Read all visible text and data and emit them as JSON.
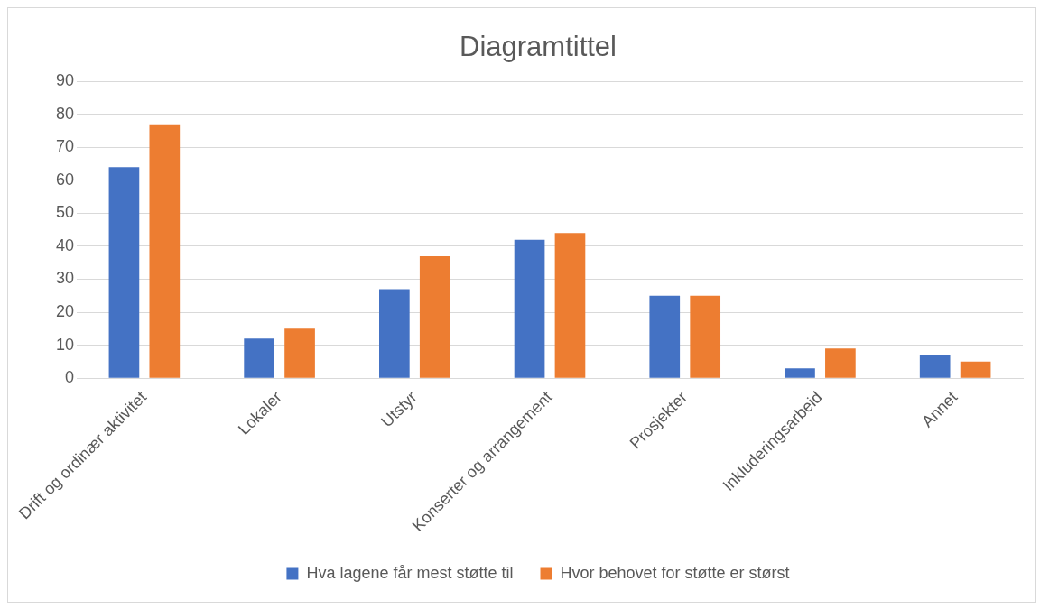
{
  "chart_data": {
    "type": "bar",
    "title": "Diagramtittel",
    "categories": [
      "Drift og ordinær aktivitet",
      "Lokaler",
      "Utstyr",
      "Konserter og arrangement",
      "Prosjekter",
      "Inkluderingsarbeid",
      "Annet"
    ],
    "series": [
      {
        "name": "Hva lagene får mest støtte til",
        "color": "#4472c4",
        "values": [
          64,
          12,
          27,
          42,
          25,
          3,
          7
        ]
      },
      {
        "name": "Hvor behovet for støtte er størst",
        "color": "#ed7d31",
        "values": [
          77,
          15,
          37,
          44,
          25,
          9,
          5
        ]
      }
    ],
    "ylim": [
      0,
      90
    ],
    "yticks": [
      0,
      10,
      20,
      30,
      40,
      50,
      60,
      70,
      80,
      90
    ],
    "grid": "y",
    "legend": "bottom"
  }
}
